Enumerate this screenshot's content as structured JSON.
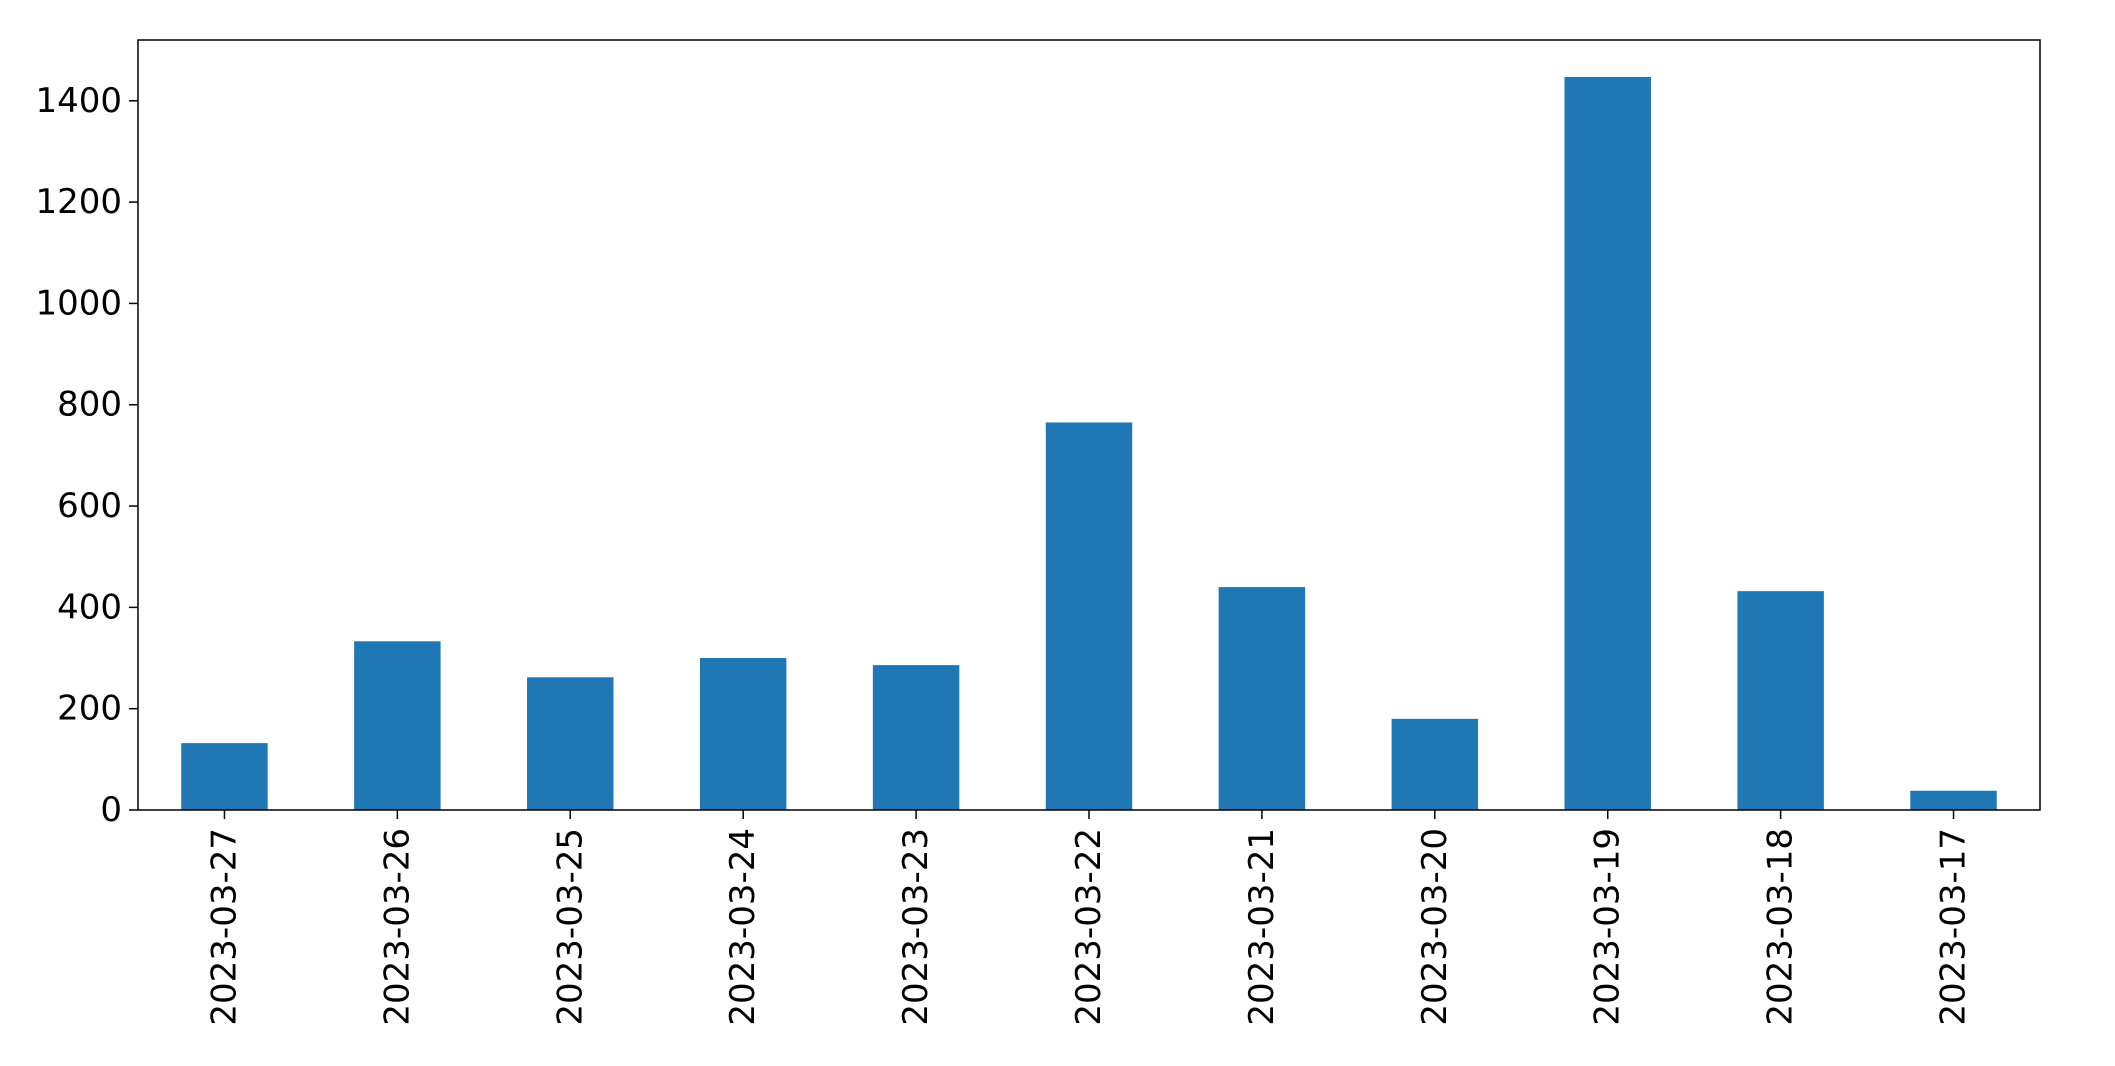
{
  "chart_data": {
    "type": "bar",
    "title": "",
    "xlabel": "",
    "ylabel": "",
    "categories": [
      "2023-03-27",
      "2023-03-26",
      "2023-03-25",
      "2023-03-24",
      "2023-03-23",
      "2023-03-22",
      "2023-03-21",
      "2023-03-20",
      "2023-03-19",
      "2023-03-18",
      "2023-03-17"
    ],
    "values": [
      132,
      333,
      262,
      300,
      286,
      765,
      440,
      180,
      1447,
      432,
      38
    ],
    "ylim": [
      0,
      1520
    ],
    "yticks": [
      "0",
      "200",
      "400",
      "600",
      "800",
      "1000",
      "1200",
      "1400"
    ],
    "grid": false,
    "legend": "none",
    "bar_color": "#1f77b4"
  }
}
